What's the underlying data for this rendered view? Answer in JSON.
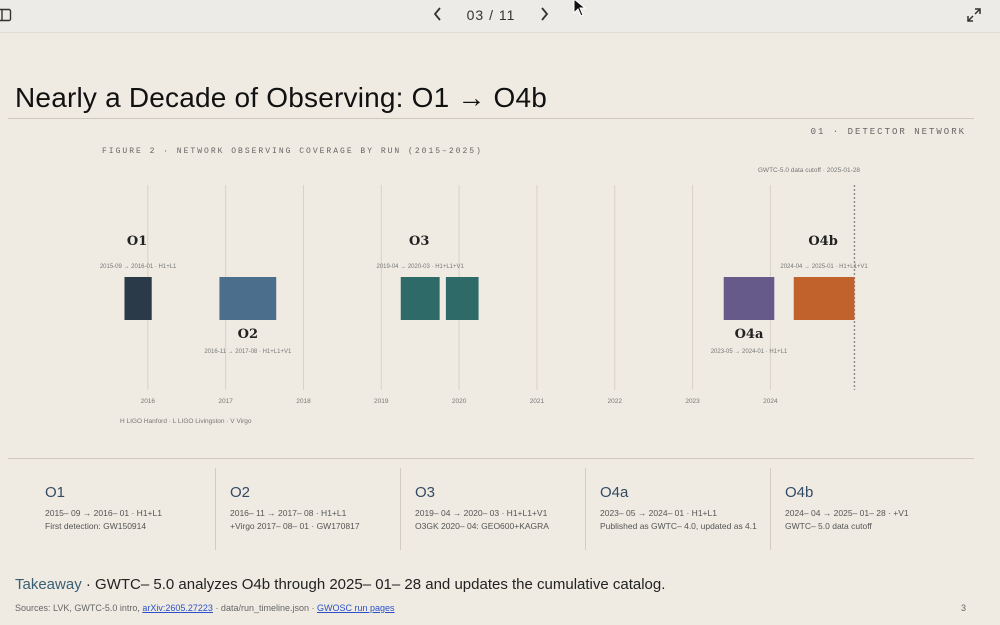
{
  "toolbar": {
    "prev_icon": "chevron-left-icon",
    "next_icon": "chevron-right-icon",
    "page_indicator": "03 / 11",
    "sidebar_icon": "sidebar-toggle-icon",
    "expand_icon": "expand-icon"
  },
  "slide": {
    "title": "Nearly a Decade of Observing: O1 → O4b",
    "section_label": "01 · DETECTOR NETWORK",
    "figure_caption": "FIGURE 2 · NETWORK OBSERVING COVERAGE BY RUN (2015–2025)",
    "cutoff_note": "GWTC-5.0 data cutoff · 2025-01-28",
    "legend_text": "H LIGO Hanford · L LIGO Livingston · V Virgo"
  },
  "chart_data": {
    "type": "timeline",
    "x_ticks": [
      "2016",
      "2017",
      "2018",
      "2019",
      "2020",
      "2021",
      "2022",
      "2023",
      "2024"
    ],
    "xlim": [
      2015.0,
      2025.1
    ],
    "cutoff": 2025.08,
    "runs": [
      {
        "label": "O1",
        "start": 2015.7,
        "end": 2016.05,
        "lane": "upper",
        "color": "#2a3a48",
        "label_pos": "above",
        "annotation": "2015-09 → 2016-01 · H1+L1"
      },
      {
        "label": "O2",
        "start": 2016.92,
        "end": 2017.65,
        "lane": "upper",
        "color": "#4a6e8c",
        "label_pos": "below",
        "annotation": "2016-11 → 2017-08 · H1+L1+V1"
      },
      {
        "label": "O3",
        "start": 2019.25,
        "end": 2019.75,
        "lane": "upper",
        "color": "#2e6b68",
        "label_pos": "above",
        "annotation": "2019-04 → 2020-03 · H1+L1+V1"
      },
      {
        "label": "",
        "start": 2019.83,
        "end": 2020.25,
        "lane": "upper",
        "color": "#2e6b68",
        "label_pos": "none",
        "annotation": ""
      },
      {
        "label": "O4a",
        "start": 2023.4,
        "end": 2024.05,
        "lane": "upper",
        "color": "#665a8a",
        "label_pos": "below",
        "annotation": "2023-05 → 2024-01 · H1+L1"
      },
      {
        "label": "O4b",
        "start": 2024.3,
        "end": 2025.08,
        "lane": "upper",
        "color": "#c1612c",
        "label_pos": "above",
        "annotation": "2024-04 → 2025-01 · H1+L1+V1"
      }
    ]
  },
  "cards": [
    {
      "title": "O1",
      "line1": "2015– 09 → 2016– 01 · H1+L1",
      "line2": "First detection: GW150914"
    },
    {
      "title": "O2",
      "line1": "2016– 11 → 2017– 08 · H1+L1",
      "line2": "+Virgo 2017– 08– 01 · GW170817"
    },
    {
      "title": "O3",
      "line1": "2019– 04 → 2020– 03 · H1+L1+V1",
      "line2": "O3GK 2020– 04: GEO600+KAGRA"
    },
    {
      "title": "O4a",
      "line1": "2023– 05 → 2024– 01 · H1+L1",
      "line2": "Published as GWTC– 4.0, updated as 4.1"
    },
    {
      "title": "O4b",
      "line1": "2024– 04 → 2025– 01– 28 · +V1",
      "line2": "GWTC– 5.0 data cutoff"
    }
  ],
  "takeaway": {
    "label": "Takeaway",
    "separator": " · ",
    "text": "GWTC– 5.0 analyzes O4b through 2025– 01– 28 and updates the cumulative catalog."
  },
  "sources": {
    "prefix": "Sources: LVK, GWTC-5.0 intro, ",
    "link1": "arXiv:2605.27223",
    "middle": " · data/run_timeline.json · ",
    "link2": "GWOSC run pages"
  },
  "page_number": "3"
}
